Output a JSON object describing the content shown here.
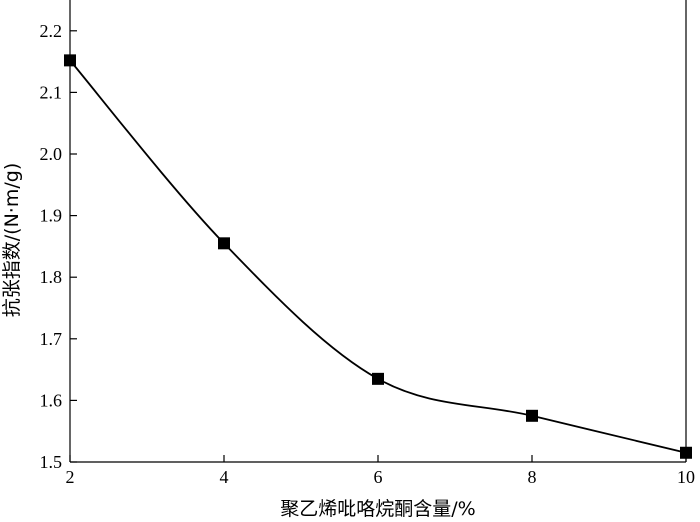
{
  "chart_data": {
    "type": "line",
    "xlabel": "聚乙烯吡咯烷酮含量/%",
    "ylabel": "抗张指数/(N·m/g)",
    "xlim": [
      2,
      10
    ],
    "ylim": [
      1.5,
      2.25
    ],
    "x_ticks": [
      2,
      4,
      6,
      8,
      10
    ],
    "y_ticks": [
      1.5,
      1.6,
      1.7,
      1.8,
      1.9,
      2.0,
      2.1,
      2.2
    ],
    "x_tick_labels": [
      "2",
      "4",
      "6",
      "8",
      "10"
    ],
    "y_tick_labels": [
      "1.5",
      "1.6",
      "1.7",
      "1.8",
      "1.9",
      "2.0",
      "2.1",
      "2.2"
    ],
    "marker": "square",
    "line_style": "smooth",
    "series": [
      {
        "x": [
          2,
          4,
          6,
          8,
          10
        ],
        "y": [
          2.152,
          1.855,
          1.635,
          1.575,
          1.515
        ]
      }
    ]
  }
}
